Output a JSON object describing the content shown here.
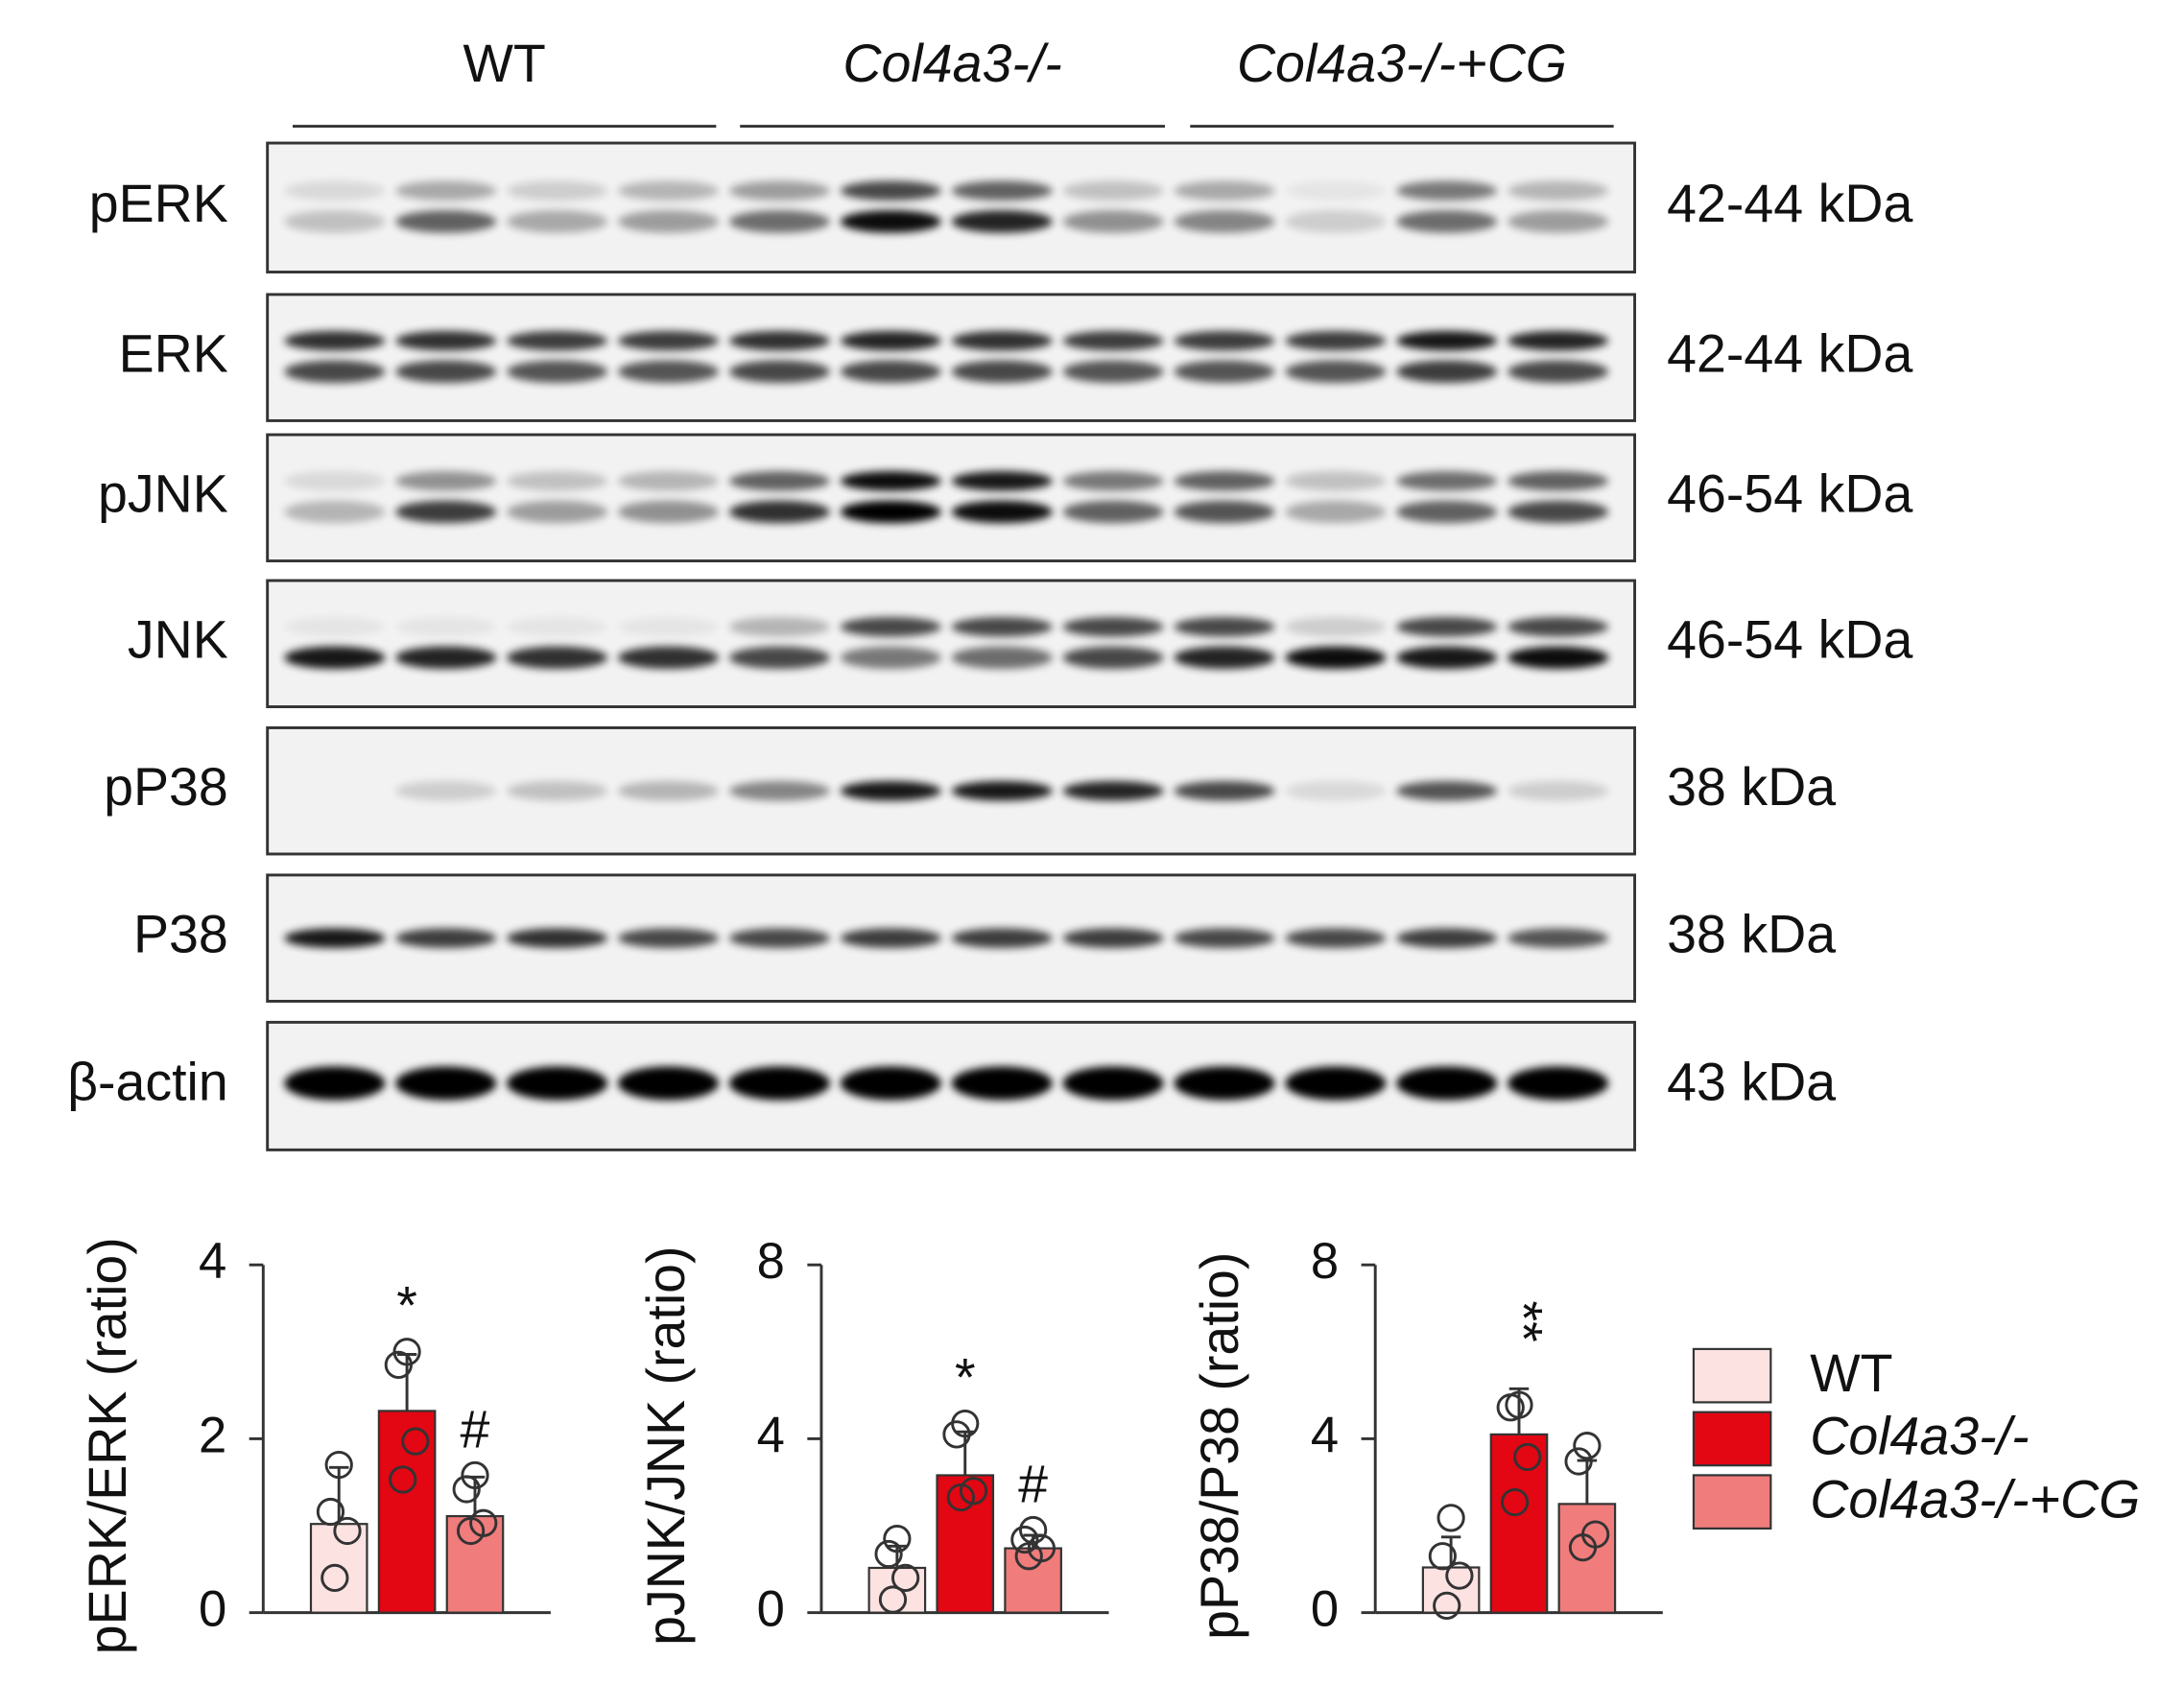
{
  "blot": {
    "groups": [
      "WT",
      "Col4a3-/-",
      "Col4a3-/-+CG"
    ],
    "rows": [
      {
        "label": "pERK",
        "size": "42-44 kDa"
      },
      {
        "label": "ERK",
        "size": "42-44 kDa"
      },
      {
        "label": "pJNK",
        "size": "46-54 kDa"
      },
      {
        "label": "JNK",
        "size": "46-54 kDa"
      },
      {
        "label": "pP38",
        "size": "38 kDa"
      },
      {
        "label": "P38",
        "size": "38 kDa"
      },
      {
        "label": "β-actin",
        "size": "43 kDa"
      }
    ]
  },
  "chart_data": [
    {
      "type": "bar",
      "ylabel": "pERK/ERK (ratio)",
      "ylim": [
        0,
        4
      ],
      "yticks": [
        0,
        2,
        4
      ],
      "series": [
        {
          "name": "WT",
          "color": "#fde2e2",
          "values": [
            1.02
          ],
          "errors": [
            0.65
          ],
          "points": [
            [
              1.7,
              1.16,
              0.94,
              0.4
            ]
          ]
        },
        {
          "name": "Col4a3-/-",
          "color": "#e30613",
          "values": [
            2.32
          ],
          "errors": [
            0.65
          ],
          "points": [
            [
              3.0,
              2.85,
              1.97,
              1.53
            ]
          ],
          "annotation": "*"
        },
        {
          "name": "Col4a3-/-+CG",
          "color": "#f07c7c",
          "values": [
            1.11
          ],
          "errors": [
            0.45
          ],
          "points": [
            [
              1.58,
              1.42,
              1.03,
              0.94
            ]
          ],
          "annotation": "#"
        }
      ]
    },
    {
      "type": "bar",
      "ylabel": "pJNK/JNK (ratio)",
      "ylim": [
        0,
        8
      ],
      "yticks": [
        0,
        4,
        8
      ],
      "series": [
        {
          "name": "WT",
          "color": "#fde2e2",
          "values": [
            1.03
          ],
          "errors": [
            0.5
          ],
          "points": [
            [
              1.7,
              1.35,
              0.8,
              0.3
            ]
          ]
        },
        {
          "name": "Col4a3-/-",
          "color": "#e30613",
          "values": [
            3.16
          ],
          "errors": [
            1.0
          ],
          "points": [
            [
              4.35,
              4.1,
              2.8,
              2.65
            ]
          ],
          "annotation": "*"
        },
        {
          "name": "Col4a3-/-+CG",
          "color": "#f07c7c",
          "values": [
            1.48
          ],
          "errors": [
            0.3
          ],
          "points": [
            [
              1.9,
              1.68,
              1.48,
              1.3
            ]
          ],
          "annotation": "#"
        }
      ]
    },
    {
      "type": "bar",
      "ylabel": "pP38/P38 (ratio)",
      "ylim": [
        0,
        8
      ],
      "yticks": [
        0,
        4,
        8
      ],
      "series": [
        {
          "name": "WT",
          "color": "#fde2e2",
          "values": [
            1.04
          ],
          "errors": [
            0.7
          ],
          "points": [
            [
              2.18,
              1.3,
              0.85,
              0.16
            ]
          ]
        },
        {
          "name": "Col4a3-/-",
          "color": "#e30613",
          "values": [
            4.1
          ],
          "errors": [
            1.05
          ],
          "points": [
            [
              4.78,
              4.72,
              3.58,
              2.54
            ]
          ],
          "annotation": "**"
        },
        {
          "name": "Col4a3-/-+CG",
          "color": "#f07c7c",
          "values": [
            2.5
          ],
          "errors": [
            1.0
          ],
          "points": [
            [
              3.84,
              3.48,
              1.8,
              1.5
            ]
          ]
        }
      ]
    }
  ]
}
